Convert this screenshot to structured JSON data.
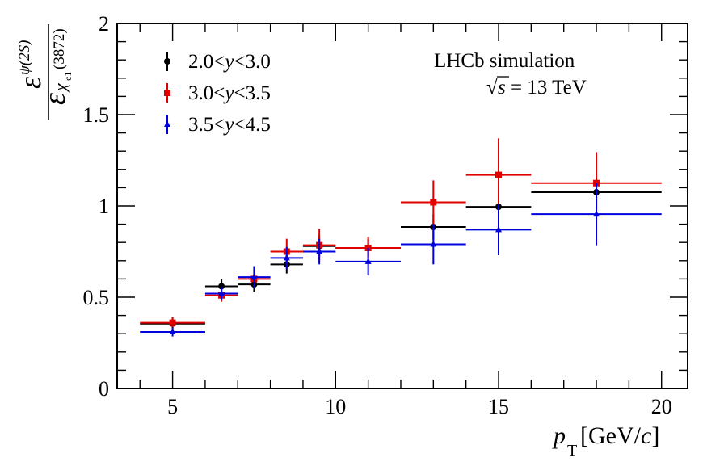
{
  "chart_data": {
    "type": "scatter",
    "title": "",
    "annotation": {
      "experiment": "LHCb simulation",
      "energy_sqrt": "√",
      "energy_s": "s",
      "energy_rest": " = 13 TeV"
    },
    "xlabel": {
      "var": "p",
      "sub": "T",
      "units": "[GeV/c]",
      "units_pre": " [GeV/",
      "units_c": "c",
      "units_post": "]"
    },
    "ylabel": {
      "numerator": "ε",
      "numerator_sub": "ψ(2S)",
      "denominator": "ε",
      "denominator_sub_chi": "χ",
      "denominator_sub_c1": "c1",
      "denominator_sub_mass": "(3872)"
    },
    "xlim": [
      3.3,
      20.8
    ],
    "ylim": [
      0,
      2
    ],
    "x_ticks": [
      5,
      10,
      15,
      20
    ],
    "x_tick_labels": [
      "5",
      "10",
      "15",
      "20"
    ],
    "y_ticks": [
      0,
      0.5,
      1,
      1.5,
      2
    ],
    "y_tick_labels": [
      "0",
      "0.5",
      "1",
      "1.5",
      "2"
    ],
    "legend": {
      "position": "top-left",
      "entries": [
        {
          "label_pre": "2.0<",
          "label_var": "y",
          "label_post": "<3.0"
        },
        {
          "label_pre": "3.0<",
          "label_var": "y",
          "label_post": "<3.5"
        },
        {
          "label_pre": "3.5<",
          "label_var": "y",
          "label_post": "<4.5"
        }
      ]
    },
    "series": [
      {
        "name": "2.0<y<3.0",
        "color": "#000000",
        "marker": "circle",
        "points": [
          {
            "x": 5.0,
            "xlo": 4.0,
            "xhi": 6.0,
            "y": 0.355,
            "yerr": 0.035
          },
          {
            "x": 6.5,
            "xlo": 6.0,
            "xhi": 7.0,
            "y": 0.56,
            "yerr": 0.04
          },
          {
            "x": 7.5,
            "xlo": 7.0,
            "xhi": 8.0,
            "y": 0.57,
            "yerr": 0.04
          },
          {
            "x": 8.5,
            "xlo": 8.0,
            "xhi": 9.0,
            "y": 0.68,
            "yerr": 0.05
          },
          {
            "x": 9.5,
            "xlo": 9.0,
            "xhi": 10.0,
            "y": 0.78,
            "yerr": 0.06
          },
          {
            "x": 11.0,
            "xlo": 10.0,
            "xhi": 12.0,
            "y": 0.77,
            "yerr": 0.05
          },
          {
            "x": 13.0,
            "xlo": 12.0,
            "xhi": 14.0,
            "y": 0.885,
            "yerr": 0.07
          },
          {
            "x": 15.0,
            "xlo": 14.0,
            "xhi": 16.0,
            "y": 0.995,
            "yerr": 0.08
          },
          {
            "x": 18.0,
            "xlo": 16.0,
            "xhi": 20.0,
            "y": 1.075,
            "yerr": 0.09
          }
        ]
      },
      {
        "name": "3.0<y<3.5",
        "color": "#e00000",
        "marker": "square",
        "points": [
          {
            "x": 5.0,
            "xlo": 4.0,
            "xhi": 6.0,
            "y": 0.36,
            "yerr": 0.03
          },
          {
            "x": 6.5,
            "xlo": 6.0,
            "xhi": 7.0,
            "y": 0.51,
            "yerr": 0.035
          },
          {
            "x": 7.5,
            "xlo": 7.0,
            "xhi": 8.0,
            "y": 0.6,
            "yerr": 0.05
          },
          {
            "x": 8.5,
            "xlo": 8.0,
            "xhi": 9.0,
            "y": 0.75,
            "yerr": 0.07
          },
          {
            "x": 9.5,
            "xlo": 9.0,
            "xhi": 10.0,
            "y": 0.785,
            "yerr": 0.09
          },
          {
            "x": 11.0,
            "xlo": 10.0,
            "xhi": 12.0,
            "y": 0.77,
            "yerr": 0.06
          },
          {
            "x": 13.0,
            "xlo": 12.0,
            "xhi": 14.0,
            "y": 1.02,
            "yerr": 0.12
          },
          {
            "x": 15.0,
            "xlo": 14.0,
            "xhi": 16.0,
            "y": 1.17,
            "yerr": 0.2
          },
          {
            "x": 18.0,
            "xlo": 16.0,
            "xhi": 20.0,
            "y": 1.125,
            "yerr": 0.17
          }
        ]
      },
      {
        "name": "3.5<y<4.5",
        "color": "#0000dd",
        "marker": "triangle",
        "points": [
          {
            "x": 5.0,
            "xlo": 4.0,
            "xhi": 6.0,
            "y": 0.31,
            "yerr": 0.025
          },
          {
            "x": 6.5,
            "xlo": 6.0,
            "xhi": 7.0,
            "y": 0.52,
            "yerr": 0.035
          },
          {
            "x": 7.5,
            "xlo": 7.0,
            "xhi": 8.0,
            "y": 0.61,
            "yerr": 0.06
          },
          {
            "x": 8.5,
            "xlo": 8.0,
            "xhi": 9.0,
            "y": 0.715,
            "yerr": 0.06
          },
          {
            "x": 9.5,
            "xlo": 9.0,
            "xhi": 10.0,
            "y": 0.75,
            "yerr": 0.07
          },
          {
            "x": 11.0,
            "xlo": 10.0,
            "xhi": 12.0,
            "y": 0.695,
            "yerr": 0.075
          },
          {
            "x": 13.0,
            "xlo": 12.0,
            "xhi": 14.0,
            "y": 0.79,
            "yerr": 0.11
          },
          {
            "x": 15.0,
            "xlo": 14.0,
            "xhi": 16.0,
            "y": 0.87,
            "yerr": 0.14
          },
          {
            "x": 18.0,
            "xlo": 16.0,
            "xhi": 20.0,
            "y": 0.955,
            "yerr": 0.17
          }
        ]
      }
    ]
  }
}
